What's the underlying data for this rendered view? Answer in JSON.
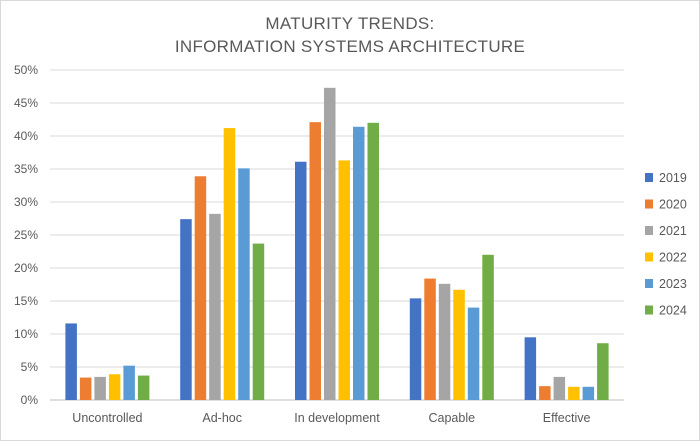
{
  "chart_data": {
    "type": "bar",
    "title_lines": [
      "MATURITY TRENDS:",
      "INFORMATION SYSTEMS ARCHITECTURE"
    ],
    "categories": [
      "Uncontrolled",
      "Ad-hoc",
      "In development",
      "Capable",
      "Effective"
    ],
    "series": [
      {
        "name": "2019",
        "color": "#4472c4",
        "values": [
          11.6,
          27.4,
          36.1,
          15.4,
          9.5
        ]
      },
      {
        "name": "2020",
        "color": "#ed7d31",
        "values": [
          3.4,
          33.9,
          42.1,
          18.4,
          2.1
        ]
      },
      {
        "name": "2021",
        "color": "#a5a5a5",
        "values": [
          3.5,
          28.2,
          47.3,
          17.6,
          3.5
        ]
      },
      {
        "name": "2022",
        "color": "#ffc000",
        "values": [
          3.9,
          41.2,
          36.3,
          16.7,
          2.0
        ]
      },
      {
        "name": "2023",
        "color": "#5b9bd5",
        "values": [
          5.2,
          35.1,
          41.4,
          14.0,
          2.0
        ]
      },
      {
        "name": "2024",
        "color": "#70ad47",
        "values": [
          3.7,
          23.7,
          42.0,
          22.0,
          8.6
        ]
      }
    ],
    "ylim": [
      0,
      50
    ],
    "yticks": [
      0,
      5,
      10,
      15,
      20,
      25,
      30,
      35,
      40,
      45,
      50
    ],
    "ytick_labels": [
      "0%",
      "5%",
      "10%",
      "15%",
      "20%",
      "25%",
      "30%",
      "35%",
      "40%",
      "45%",
      "50%"
    ],
    "grid": true,
    "legend_position": "right",
    "xlabel": "",
    "ylabel": ""
  }
}
